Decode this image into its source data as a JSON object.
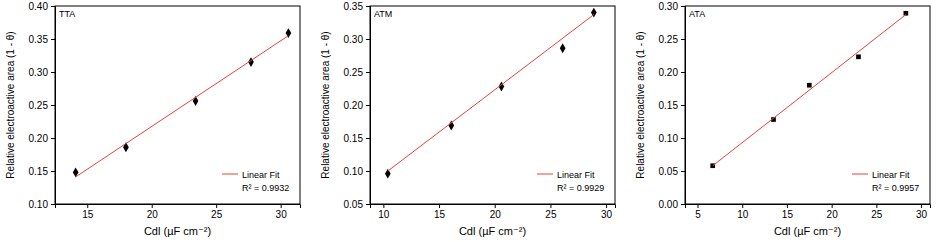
{
  "chart_data": [
    {
      "type": "scatter",
      "title": "TTA",
      "x_label": "Cdl (µF cm⁻²)",
      "y_label": "Relative electroactive area (1 - θ)",
      "xlim": [
        12.5,
        31.5
      ],
      "xticks": [
        15,
        20,
        25,
        30
      ],
      "ylim": [
        0.1,
        0.4
      ],
      "yticks": [
        {
          "value": 0.1,
          "label": "0.10"
        },
        0.15,
        {
          "value": 0.2,
          "label": "0.20"
        },
        0.25,
        {
          "value": 0.3,
          "label": "0.30"
        },
        0.35,
        {
          "value": 0.4,
          "label": "0.40"
        }
      ],
      "legend": "lower right",
      "annotation": "R² = 0.9932",
      "series": [
        {
          "type": "scatter",
          "marker": "diamond",
          "color": "#000000",
          "x": [
            14.1,
            18.0,
            23.4,
            27.7,
            30.6
          ],
          "values": [
            0.148,
            0.186,
            0.256,
            0.315,
            0.359
          ]
        },
        {
          "name": "Linear Fit",
          "type": "line",
          "line_style": "solid",
          "color": "#e8413a",
          "x": [
            14.1,
            30.6
          ],
          "values": [
            0.141,
            0.355
          ]
        }
      ]
    },
    {
      "type": "scatter",
      "title": "ATM",
      "x_label": "Cdl (µF cm⁻²)",
      "y_label": "Relative electroactive area (1 - θ)",
      "xlim": [
        8.8,
        30.8
      ],
      "xticks": [
        10,
        15,
        20,
        25,
        30
      ],
      "ylim": [
        0.05,
        0.35
      ],
      "yticks": [
        0.05,
        {
          "value": 0.1,
          "label": "0.10"
        },
        0.15,
        {
          "value": 0.2,
          "label": "0.20"
        },
        0.25,
        {
          "value": 0.3,
          "label": "0.30"
        },
        0.35
      ],
      "legend": "lower right",
      "annotation": "R² = 0.9929",
      "series": [
        {
          "type": "scatter",
          "marker": "diamond",
          "color": "#000000",
          "x": [
            10.4,
            16.1,
            20.6,
            26.1,
            28.9
          ],
          "values": [
            0.096,
            0.169,
            0.228,
            0.286,
            0.34
          ]
        },
        {
          "name": "Linear Fit",
          "type": "line",
          "line_style": "solid",
          "color": "#e8413a",
          "x": [
            10.4,
            28.9
          ],
          "values": [
            0.1,
            0.337
          ]
        }
      ]
    },
    {
      "type": "scatter",
      "title": "ATA",
      "x_label": "Cdl (µF cm⁻²)",
      "y_label": "Relative electroactive area (1 - θ)",
      "xlim": [
        3.6,
        31
      ],
      "xticks": [
        5,
        10,
        15,
        20,
        25,
        30
      ],
      "ylim": [
        0,
        0.3
      ],
      "yticks": [
        {
          "value": 0,
          "label": "0.00"
        },
        0.05,
        {
          "value": 0.1,
          "label": "0.10"
        },
        0.15,
        {
          "value": 0.2,
          "label": "0.20"
        },
        0.25,
        {
          "value": 0.3,
          "label": "0.30"
        }
      ],
      "legend": "lower right",
      "annotation": "R² = 0.9957",
      "series": [
        {
          "type": "scatter",
          "marker": "square",
          "color": "#000000",
          "x": [
            6.7,
            13.5,
            17.5,
            23.0,
            28.3
          ],
          "values": [
            0.058,
            0.128,
            0.18,
            0.223,
            0.289
          ]
        },
        {
          "name": "Linear Fit",
          "type": "line",
          "line_style": "solid",
          "color": "#e8413a",
          "x": [
            6.7,
            28.3
          ],
          "values": [
            0.058,
            0.287
          ]
        }
      ]
    }
  ]
}
